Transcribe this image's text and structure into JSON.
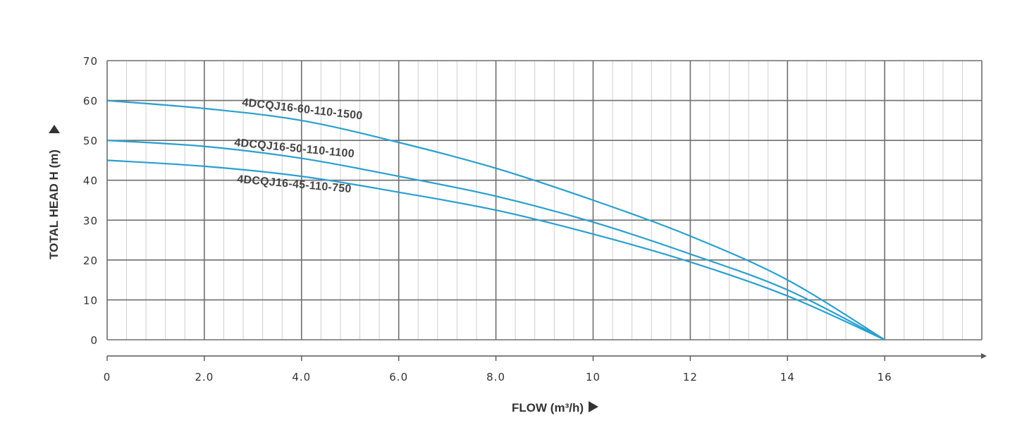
{
  "chart_data": {
    "type": "line",
    "title": "",
    "xlabel": "FLOW (m³/h)",
    "ylabel": "TOTAL HEAD H (m)",
    "xlim": [
      0,
      18
    ],
    "ylim": [
      0,
      70
    ],
    "x_ticks": [
      {
        "value": 0,
        "label": "0"
      },
      {
        "value": 2,
        "label": "2.0"
      },
      {
        "value": 4,
        "label": "4.0"
      },
      {
        "value": 6,
        "label": "6.0"
      },
      {
        "value": 8,
        "label": "8.0"
      },
      {
        "value": 10,
        "label": "10"
      },
      {
        "value": 12,
        "label": "12"
      },
      {
        "value": 14,
        "label": "14"
      },
      {
        "value": 16,
        "label": "16"
      }
    ],
    "y_ticks": [
      {
        "value": 0,
        "label": "0"
      },
      {
        "value": 10,
        "label": "10"
      },
      {
        "value": 20,
        "label": "20"
      },
      {
        "value": 30,
        "label": "30"
      },
      {
        "value": 40,
        "label": "40"
      },
      {
        "value": 50,
        "label": "50"
      },
      {
        "value": 60,
        "label": "60"
      },
      {
        "value": 70,
        "label": "70"
      }
    ],
    "grid": true,
    "series": [
      {
        "name": "4DCQJ16-60-110-1500",
        "x": [
          0,
          2,
          4,
          6,
          8,
          10,
          12,
          14,
          16
        ],
        "y": [
          60,
          58,
          55,
          49.5,
          43,
          35,
          26,
          15,
          0
        ]
      },
      {
        "name": "4DCQJ16-50-110-1100",
        "x": [
          0,
          2,
          4,
          6,
          8,
          10,
          12,
          14,
          16
        ],
        "y": [
          50,
          48.5,
          45.5,
          41,
          36,
          29.5,
          21.5,
          12.5,
          0
        ]
      },
      {
        "name": "4DCQJ16-45-110-750",
        "x": [
          0,
          2,
          4,
          6,
          8,
          10,
          12,
          14,
          16
        ],
        "y": [
          45,
          43.5,
          41,
          37,
          32.5,
          26.5,
          19.5,
          11,
          0
        ]
      }
    ]
  },
  "colors": {
    "curve": "#2a9fd0",
    "grid_major": "#6e6e6e",
    "grid_minor": "#cfcfcf",
    "axis": "#555555",
    "text": "#333333"
  }
}
